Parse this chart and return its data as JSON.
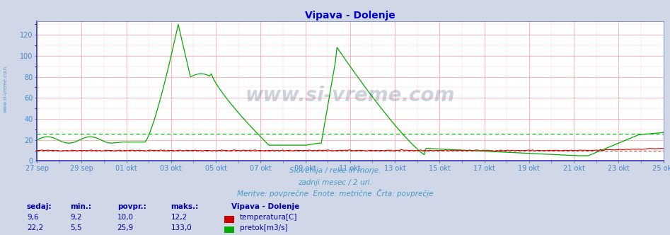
{
  "title": "Vipava - Dolenje",
  "title_color": "#0000cc",
  "bg_color": "#d0d8e8",
  "plot_bg_color": "#ffffff",
  "grid_color": "#ff9999",
  "grid_minor_color": "#ffcccc",
  "subtitle1": "Slovenija / reke in morje.",
  "subtitle2": "zadnji mesec / 2 uri.",
  "subtitle3": "Meritve: povprečne  Enote: metrične  Črta: povprečje",
  "subtitle_color": "#4499cc",
  "ylim_max": 133,
  "yticks": [
    0,
    20,
    40,
    60,
    80,
    100,
    120
  ],
  "temp_avg": 10.0,
  "flow_avg": 25.9,
  "temp_color": "#cc0000",
  "flow_color": "#00aa00",
  "avg_flow_color": "#00bb00",
  "avg_temp_color": "#cc0000",
  "tick_color": "#4488cc",
  "spine_color": "#8899cc",
  "x_tick_labels": [
    "27 sep",
    "29 sep",
    "01 okt",
    "03 okt",
    "05 okt",
    "07 okt",
    "09 okt",
    "11 okt",
    "13 okt",
    "15 okt",
    "17 okt",
    "19 okt",
    "21 okt",
    "23 okt",
    "25 okt"
  ],
  "legend_title": "Vipava - Dolenje",
  "legend_color": "#0000aa",
  "legend_label1": "temperatura[C]",
  "legend_label2": "pretok[m3/s]",
  "legend_color1": "#cc0000",
  "legend_color2": "#00aa00",
  "table_headers": [
    "sedaj:",
    "min.:",
    "povpr.:",
    "maks.:"
  ],
  "table_color": "#0000aa",
  "table_values_temp": [
    "9,6",
    "9,2",
    "10,0",
    "12,2"
  ],
  "table_values_flow": [
    "22,2",
    "5,5",
    "25,9",
    "133,0"
  ],
  "watermark": "www.si-vreme.com",
  "watermark_color": "#1a3a6a",
  "sidebar": "www.si-vreme.com",
  "sidebar_color": "#4488cc"
}
